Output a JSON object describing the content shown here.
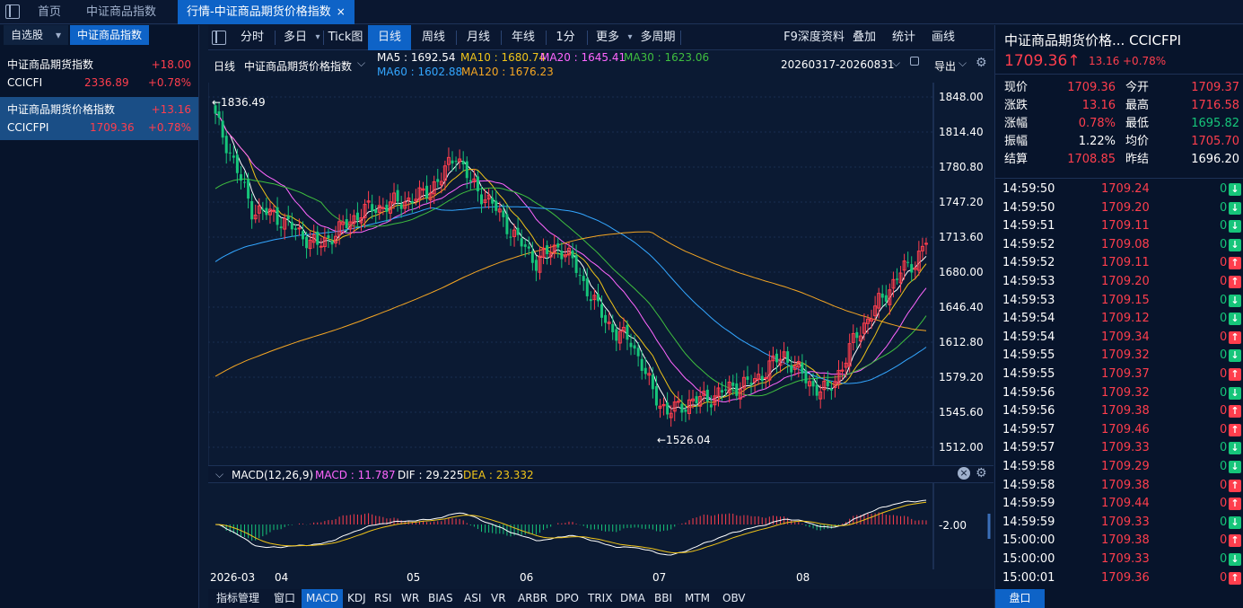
{
  "topbar": {
    "tabs": [
      "首页",
      "中证商品指数",
      "行情-中证商品期货价格指数"
    ],
    "close_label": "×"
  },
  "sidebar": {
    "tabs": [
      "自选股",
      "中证商品指数"
    ],
    "tab_arrow": "▾",
    "rows": [
      {
        "name": "中证商品期货指数",
        "change": "+18.00",
        "code": "CCICFI",
        "price": "2336.89",
        "pct": "+0.78%"
      },
      {
        "name": "中证商品期货价格指数",
        "change": "+13.16",
        "code": "CCICFPI",
        "price": "1709.36",
        "pct": "+0.78%"
      }
    ]
  },
  "toolbar": {
    "buttons": [
      "分时",
      "多日",
      "Tick图",
      "日线",
      "周线",
      "月线",
      "年线",
      "1分",
      "更多",
      "多周期",
      "F9深度资料",
      "叠加",
      "统计",
      "画线"
    ],
    "active": "日线",
    "dropdown_arrow": "▾"
  },
  "info": {
    "period": "日线",
    "name": "中证商品期货价格指数",
    "ma5": "MA5 : 1692.54",
    "ma10": "MA10 : 1680.74",
    "ma20": "MA20 : 1645.41",
    "ma30": "MA30 : 1623.06",
    "ma60": "MA60 : 1602.88",
    "ma120": "MA120 : 1676.23",
    "date_range": "20260317-20260831",
    "export": "导出"
  },
  "colors": {
    "up": "#ff3e4d",
    "down": "#16c57a",
    "ma5": "#ffffff",
    "ma10": "#f0c419",
    "ma20": "#ff66ff",
    "ma30": "#3fbf3f",
    "ma60": "#33a6ff",
    "ma120": "#f5a623",
    "active_tab": "#0e63c7"
  },
  "chart_data": {
    "type": "candlestick",
    "y_ticks": [
      "1848.00",
      "1814.40",
      "1780.80",
      "1747.20",
      "1713.60",
      "1680.00",
      "1646.40",
      "1612.80",
      "1579.20",
      "1545.60",
      "1512.00"
    ],
    "ylim": [
      1512,
      1848
    ],
    "x_labels": [
      "2026-03",
      "04",
      "05",
      "06",
      "07",
      "08"
    ],
    "high_label": "←1836.49",
    "low_label": "←1526.04",
    "high": 1836.49,
    "low": 1526.04
  },
  "macd": {
    "title": "MACD(12,26,9)",
    "macd": "MACD : 11.787",
    "dif": "DIF : 29.225",
    "dea": "DEA : 23.332",
    "y_tick": "-2.00"
  },
  "bottom_tabs": [
    "指标管理",
    "窗口",
    "MACD",
    "KDJ",
    "RSI",
    "WR",
    "BIAS",
    "ASI",
    "VR",
    "ARBR",
    "DPO",
    "TRIX",
    "DMA",
    "BBI",
    "MTM",
    "OBV"
  ],
  "right": {
    "title": "中证商品期货价格...",
    "code": "CCICFPI",
    "price": "1709.36",
    "price_arrow": "↑",
    "change": "13.16",
    "pct": "+0.78%",
    "quote": [
      {
        "l": "现价",
        "lv": "1709.36",
        "r": "今开",
        "rv": "1709.37",
        "lc": "up",
        "rc": "up"
      },
      {
        "l": "涨跌",
        "lv": "13.16",
        "r": "最高",
        "rv": "1716.58",
        "lc": "up",
        "rc": "up"
      },
      {
        "l": "涨幅",
        "lv": "0.78%",
        "r": "最低",
        "rv": "1695.82",
        "lc": "up",
        "rc": "green"
      },
      {
        "l": "振幅",
        "lv": "1.22%",
        "r": "均价",
        "rv": "1705.70",
        "lc": "white",
        "rc": "up"
      },
      {
        "l": "结算",
        "lv": "1708.85",
        "r": "昨结",
        "rv": "1696.20",
        "lc": "up",
        "rc": "white"
      }
    ],
    "ticks": [
      {
        "t": "14:59:50",
        "p": "1709.24",
        "v": "0",
        "d": "dn"
      },
      {
        "t": "14:59:50",
        "p": "1709.20",
        "v": "0",
        "d": "dn"
      },
      {
        "t": "14:59:51",
        "p": "1709.11",
        "v": "0",
        "d": "dn"
      },
      {
        "t": "14:59:52",
        "p": "1709.08",
        "v": "0",
        "d": "dn"
      },
      {
        "t": "14:59:52",
        "p": "1709.11",
        "v": "0",
        "d": "up"
      },
      {
        "t": "14:59:53",
        "p": "1709.20",
        "v": "0",
        "d": "up"
      },
      {
        "t": "14:59:53",
        "p": "1709.15",
        "v": "0",
        "d": "dn"
      },
      {
        "t": "14:59:54",
        "p": "1709.12",
        "v": "0",
        "d": "dn"
      },
      {
        "t": "14:59:54",
        "p": "1709.34",
        "v": "0",
        "d": "up"
      },
      {
        "t": "14:59:55",
        "p": "1709.32",
        "v": "0",
        "d": "dn"
      },
      {
        "t": "14:59:55",
        "p": "1709.37",
        "v": "0",
        "d": "up"
      },
      {
        "t": "14:59:56",
        "p": "1709.32",
        "v": "0",
        "d": "dn"
      },
      {
        "t": "14:59:56",
        "p": "1709.38",
        "v": "0",
        "d": "up"
      },
      {
        "t": "14:59:57",
        "p": "1709.46",
        "v": "0",
        "d": "up"
      },
      {
        "t": "14:59:57",
        "p": "1709.33",
        "v": "0",
        "d": "dn"
      },
      {
        "t": "14:59:58",
        "p": "1709.29",
        "v": "0",
        "d": "dn"
      },
      {
        "t": "14:59:58",
        "p": "1709.38",
        "v": "0",
        "d": "up"
      },
      {
        "t": "14:59:59",
        "p": "1709.44",
        "v": "0",
        "d": "up"
      },
      {
        "t": "14:59:59",
        "p": "1709.33",
        "v": "0",
        "d": "dn"
      },
      {
        "t": "15:00:00",
        "p": "1709.38",
        "v": "0",
        "d": "up"
      },
      {
        "t": "15:00:00",
        "p": "1709.33",
        "v": "0",
        "d": "dn"
      },
      {
        "t": "15:00:01",
        "p": "1709.36",
        "v": "0",
        "d": "up"
      }
    ],
    "bottom_label": "盘口"
  }
}
